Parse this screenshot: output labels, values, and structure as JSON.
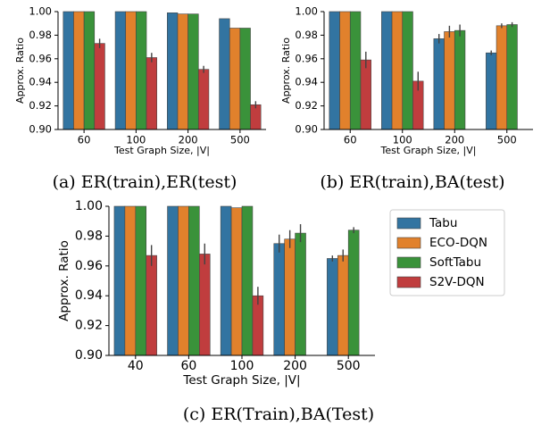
{
  "chart_data": [
    {
      "type": "bar",
      "caption": "(a) ER(train),ER(test)",
      "xlabel": "Test Graph Size, |V|",
      "ylabel": "Approx. Ratio",
      "categories": [
        "60",
        "100",
        "200",
        "500"
      ],
      "ylim": [
        0.9,
        1.0
      ],
      "yticks": [
        {
          "value": 0.9,
          "label": "0.90"
        },
        {
          "value": 0.92,
          "label": "0.92"
        },
        {
          "value": 0.94,
          "label": "0.94"
        },
        {
          "value": 0.96,
          "label": "0.96"
        },
        {
          "value": 0.98,
          "label": "0.98"
        },
        {
          "value": 1.0,
          "label": "1.00"
        }
      ],
      "series": [
        {
          "name": "Tabu",
          "color": "#3274a1",
          "values": [
            1.0,
            1.0,
            0.999,
            0.994
          ],
          "errors": [
            null,
            null,
            null,
            null
          ]
        },
        {
          "name": "ECO-DQN",
          "color": "#e1812c",
          "values": [
            1.0,
            1.0,
            0.998,
            0.986
          ],
          "errors": [
            null,
            null,
            null,
            null
          ]
        },
        {
          "name": "SoftTabu",
          "color": "#3a923a",
          "values": [
            1.0,
            1.0,
            0.998,
            0.986
          ],
          "errors": [
            null,
            null,
            null,
            null
          ]
        },
        {
          "name": "S2V-DQN",
          "color": "#c03d3e",
          "values": [
            0.973,
            0.961,
            0.951,
            0.921
          ],
          "errors": [
            0.004,
            0.004,
            0.003,
            0.003
          ]
        }
      ]
    },
    {
      "type": "bar",
      "caption": "(b) ER(train),BA(test)",
      "xlabel": "Test Graph Size, |V|",
      "ylabel": "Approx. Ratio",
      "categories": [
        "60",
        "100",
        "200",
        "500"
      ],
      "ylim": [
        0.9,
        1.0
      ],
      "yticks": [
        {
          "value": 0.9,
          "label": "0.90"
        },
        {
          "value": 0.92,
          "label": "0.92"
        },
        {
          "value": 0.94,
          "label": "0.94"
        },
        {
          "value": 0.96,
          "label": "0.96"
        },
        {
          "value": 0.98,
          "label": "0.98"
        },
        {
          "value": 1.0,
          "label": "1.00"
        }
      ],
      "series": [
        {
          "name": "Tabu",
          "color": "#3274a1",
          "values": [
            1.0,
            1.0,
            0.977,
            0.965
          ],
          "errors": [
            null,
            null,
            0.004,
            0.002
          ]
        },
        {
          "name": "ECO-DQN",
          "color": "#e1812c",
          "values": [
            1.0,
            1.0,
            0.983,
            0.988
          ],
          "errors": [
            null,
            null,
            0.005,
            0.002
          ]
        },
        {
          "name": "SoftTabu",
          "color": "#3a923a",
          "values": [
            1.0,
            1.0,
            0.984,
            0.989
          ],
          "errors": [
            null,
            null,
            0.005,
            0.002
          ]
        },
        {
          "name": "S2V-DQN",
          "color": "#c03d3e",
          "values": [
            0.959,
            0.941,
            null,
            null
          ],
          "errors": [
            0.007,
            0.008,
            null,
            null
          ]
        }
      ]
    },
    {
      "type": "bar",
      "caption": "(c) ER(Train),BA(Test)",
      "xlabel": "Test Graph Size, |V|",
      "ylabel": "Approx. Ratio",
      "legend": "right",
      "categories": [
        "40",
        "60",
        "100",
        "200",
        "500"
      ],
      "ylim": [
        0.9,
        1.0
      ],
      "yticks": [
        {
          "value": 0.9,
          "label": "0.90"
        },
        {
          "value": 0.92,
          "label": "0.92"
        },
        {
          "value": 0.94,
          "label": "0.94"
        },
        {
          "value": 0.96,
          "label": "0.96"
        },
        {
          "value": 0.98,
          "label": "0.98"
        },
        {
          "value": 1.0,
          "label": "1.00"
        }
      ],
      "series": [
        {
          "name": "Tabu",
          "color": "#3274a1",
          "values": [
            1.0,
            1.0,
            1.0,
            0.975,
            0.965
          ],
          "errors": [
            null,
            null,
            null,
            0.006,
            0.002
          ]
        },
        {
          "name": "ECO-DQN",
          "color": "#e1812c",
          "values": [
            1.0,
            1.0,
            0.999,
            0.978,
            0.967
          ],
          "errors": [
            null,
            null,
            null,
            0.006,
            0.004
          ]
        },
        {
          "name": "SoftTabu",
          "color": "#3a923a",
          "values": [
            1.0,
            1.0,
            1.0,
            0.982,
            0.984
          ],
          "errors": [
            null,
            null,
            null,
            0.006,
            0.002
          ]
        },
        {
          "name": "S2V-DQN",
          "color": "#c03d3e",
          "values": [
            0.967,
            0.968,
            0.94,
            null,
            null
          ],
          "errors": [
            0.007,
            0.007,
            0.006,
            null,
            null
          ]
        }
      ]
    }
  ]
}
